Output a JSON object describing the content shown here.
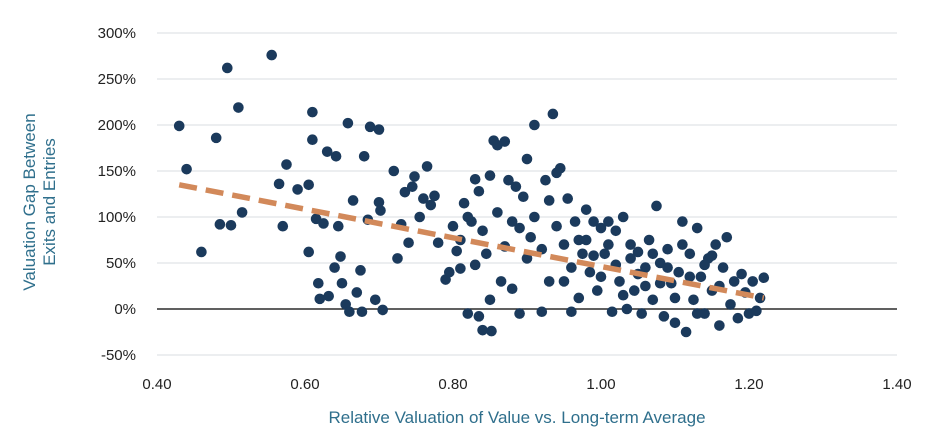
{
  "chart_data": {
    "type": "scatter",
    "title": "",
    "xlabel": "Relative Valuation of Value vs. Long-term Average",
    "ylabel_lines": [
      "Valuation Gap Between",
      "Exits and Entries"
    ],
    "xlim": [
      0.4,
      1.4
    ],
    "ylim": [
      -50,
      300
    ],
    "x_ticks": [
      0.4,
      0.6,
      0.8,
      1.0,
      1.2,
      1.4
    ],
    "x_tick_labels": [
      "0.40",
      "0.60",
      "0.80",
      "1.00",
      "1.20",
      "1.40"
    ],
    "y_ticks": [
      -50,
      0,
      50,
      100,
      150,
      200,
      250,
      300
    ],
    "y_tick_labels": [
      "-50%",
      "0%",
      "50%",
      "100%",
      "150%",
      "200%",
      "250%",
      "300%"
    ],
    "grid": "horizontal",
    "colors": {
      "points": "#1b3a5c",
      "trend": "#d2895a",
      "grid": "#d9dde2",
      "zero_line": "#2b2b2b",
      "axis_title": "#2f6f8c"
    },
    "trendline": {
      "style": "dashed",
      "x": [
        0.43,
        1.22
      ],
      "y": [
        135,
        12
      ]
    },
    "series": [
      {
        "name": "Observations",
        "points": [
          [
            0.43,
            199
          ],
          [
            0.44,
            152
          ],
          [
            0.46,
            62
          ],
          [
            0.48,
            186
          ],
          [
            0.485,
            92
          ],
          [
            0.495,
            262
          ],
          [
            0.5,
            91
          ],
          [
            0.51,
            219
          ],
          [
            0.515,
            105
          ],
          [
            0.555,
            276
          ],
          [
            0.565,
            136
          ],
          [
            0.57,
            90
          ],
          [
            0.575,
            157
          ],
          [
            0.59,
            130
          ],
          [
            0.605,
            135
          ],
          [
            0.605,
            62
          ],
          [
            0.61,
            214
          ],
          [
            0.61,
            184
          ],
          [
            0.615,
            98
          ],
          [
            0.618,
            28
          ],
          [
            0.62,
            11
          ],
          [
            0.625,
            93
          ],
          [
            0.63,
            171
          ],
          [
            0.632,
            14
          ],
          [
            0.64,
            45
          ],
          [
            0.642,
            166
          ],
          [
            0.645,
            90
          ],
          [
            0.648,
            57
          ],
          [
            0.65,
            28
          ],
          [
            0.655,
            5
          ],
          [
            0.658,
            202
          ],
          [
            0.66,
            -3
          ],
          [
            0.665,
            118
          ],
          [
            0.67,
            18
          ],
          [
            0.675,
            42
          ],
          [
            0.677,
            -3
          ],
          [
            0.68,
            166
          ],
          [
            0.685,
            97
          ],
          [
            0.688,
            198
          ],
          [
            0.695,
            10
          ],
          [
            0.7,
            195
          ],
          [
            0.7,
            116
          ],
          [
            0.702,
            107
          ],
          [
            0.705,
            -1
          ],
          [
            0.72,
            150
          ],
          [
            0.725,
            55
          ],
          [
            0.73,
            92
          ],
          [
            0.735,
            127
          ],
          [
            0.74,
            72
          ],
          [
            0.745,
            133
          ],
          [
            0.748,
            144
          ],
          [
            0.755,
            100
          ],
          [
            0.76,
            120
          ],
          [
            0.765,
            155
          ],
          [
            0.77,
            113
          ],
          [
            0.775,
            123
          ],
          [
            0.78,
            72
          ],
          [
            0.79,
            32
          ],
          [
            0.795,
            40
          ],
          [
            0.8,
            90
          ],
          [
            0.805,
            63
          ],
          [
            0.81,
            44
          ],
          [
            0.815,
            115
          ],
          [
            0.82,
            -5
          ],
          [
            0.825,
            95
          ],
          [
            0.83,
            141
          ],
          [
            0.835,
            -8
          ],
          [
            0.835,
            128
          ],
          [
            0.84,
            -23
          ],
          [
            0.845,
            60
          ],
          [
            0.85,
            145
          ],
          [
            0.852,
            -24
          ],
          [
            0.855,
            183
          ],
          [
            0.86,
            178
          ],
          [
            0.865,
            30
          ],
          [
            0.87,
            182
          ],
          [
            0.875,
            140
          ],
          [
            0.88,
            95
          ],
          [
            0.885,
            133
          ],
          [
            0.89,
            -5
          ],
          [
            0.895,
            122
          ],
          [
            0.9,
            163
          ],
          [
            0.905,
            78
          ],
          [
            0.91,
            200
          ],
          [
            0.92,
            -3
          ],
          [
            0.925,
            140
          ],
          [
            0.93,
            118
          ],
          [
            0.935,
            212
          ],
          [
            0.94,
            148
          ],
          [
            0.945,
            153
          ],
          [
            0.95,
            30
          ],
          [
            0.955,
            120
          ],
          [
            0.96,
            -3
          ],
          [
            0.965,
            95
          ],
          [
            0.97,
            75
          ],
          [
            0.975,
            60
          ],
          [
            0.98,
            108
          ],
          [
            0.985,
            40
          ],
          [
            0.99,
            95
          ],
          [
            0.995,
            20
          ],
          [
            1.0,
            88
          ],
          [
            1.005,
            60
          ],
          [
            1.01,
            95
          ],
          [
            1.015,
            -3
          ],
          [
            1.02,
            85
          ],
          [
            1.025,
            30
          ],
          [
            1.03,
            100
          ],
          [
            1.035,
            0
          ],
          [
            1.04,
            70
          ],
          [
            1.045,
            20
          ],
          [
            1.05,
            62
          ],
          [
            1.055,
            -5
          ],
          [
            1.06,
            45
          ],
          [
            1.065,
            75
          ],
          [
            1.07,
            10
          ],
          [
            1.075,
            112
          ],
          [
            1.08,
            50
          ],
          [
            1.085,
            -8
          ],
          [
            1.09,
            65
          ],
          [
            1.095,
            28
          ],
          [
            1.1,
            -15
          ],
          [
            1.105,
            40
          ],
          [
            1.11,
            95
          ],
          [
            1.115,
            -25
          ],
          [
            1.12,
            60
          ],
          [
            1.125,
            10
          ],
          [
            1.13,
            88
          ],
          [
            1.135,
            35
          ],
          [
            1.14,
            -5
          ],
          [
            1.145,
            55
          ],
          [
            1.15,
            20
          ],
          [
            1.155,
            70
          ],
          [
            1.16,
            -18
          ],
          [
            1.165,
            45
          ],
          [
            1.17,
            78
          ],
          [
            1.175,
            5
          ],
          [
            1.18,
            30
          ],
          [
            1.185,
            -10
          ],
          [
            1.19,
            38
          ],
          [
            1.195,
            18
          ],
          [
            1.2,
            -5
          ],
          [
            1.205,
            30
          ],
          [
            1.21,
            -2
          ],
          [
            1.215,
            12
          ],
          [
            1.22,
            34
          ],
          [
            0.81,
            75
          ],
          [
            0.82,
            100
          ],
          [
            0.83,
            48
          ],
          [
            0.84,
            85
          ],
          [
            0.85,
            10
          ],
          [
            0.86,
            105
          ],
          [
            0.87,
            68
          ],
          [
            0.88,
            22
          ],
          [
            0.89,
            88
          ],
          [
            0.9,
            55
          ],
          [
            0.91,
            100
          ],
          [
            0.92,
            65
          ],
          [
            0.93,
            30
          ],
          [
            0.94,
            90
          ],
          [
            0.95,
            70
          ],
          [
            0.96,
            45
          ],
          [
            0.97,
            12
          ],
          [
            0.98,
            75
          ],
          [
            0.99,
            58
          ],
          [
            1.0,
            35
          ],
          [
            1.01,
            70
          ],
          [
            1.02,
            48
          ],
          [
            1.03,
            15
          ],
          [
            1.04,
            55
          ],
          [
            1.05,
            38
          ],
          [
            1.06,
            25
          ],
          [
            1.07,
            60
          ],
          [
            1.08,
            28
          ],
          [
            1.09,
            45
          ],
          [
            1.1,
            12
          ],
          [
            1.11,
            70
          ],
          [
            1.12,
            35
          ],
          [
            1.13,
            -5
          ],
          [
            1.14,
            48
          ],
          [
            1.15,
            58
          ],
          [
            1.16,
            25
          ]
        ]
      }
    ]
  }
}
